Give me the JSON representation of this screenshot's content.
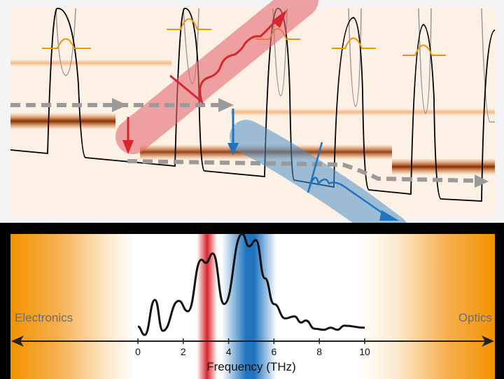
{
  "spectrum": {
    "side_left_label": "Electronics",
    "side_right_label": "Optics",
    "xlabel": "Frequency (THz)",
    "ticks": [
      "0",
      "2",
      "4",
      "6",
      "8",
      "10"
    ],
    "xlim": [
      0,
      10
    ],
    "red_band_thz": [
      2.6,
      3.5
    ],
    "blue_band_thz": [
      3.7,
      6.1
    ],
    "curve": [
      [
        0.0,
        0.1
      ],
      [
        0.3,
        0.02
      ],
      [
        0.75,
        0.36
      ],
      [
        1.1,
        0.06
      ],
      [
        1.8,
        0.35
      ],
      [
        2.2,
        0.25
      ],
      [
        2.8,
        0.75
      ],
      [
        3.0,
        0.72
      ],
      [
        3.3,
        0.81
      ],
      [
        3.8,
        0.32
      ],
      [
        4.6,
        1.0
      ],
      [
        4.9,
        0.88
      ],
      [
        5.2,
        0.94
      ],
      [
        5.6,
        0.57
      ],
      [
        6.0,
        0.32
      ],
      [
        6.5,
        0.18
      ],
      [
        6.9,
        0.2
      ],
      [
        7.2,
        0.14
      ],
      [
        7.4,
        0.16
      ],
      [
        7.8,
        0.08
      ],
      [
        8.2,
        0.07
      ],
      [
        8.5,
        0.09
      ],
      [
        8.8,
        0.07
      ],
      [
        9.1,
        0.11
      ],
      [
        10.0,
        0.09
      ]
    ]
  },
  "colors": {
    "orange": "#f39200",
    "red": "#d7262e",
    "blue": "#1f74bf",
    "peach": "#fdf1e6",
    "gray_dash": "#9a9a9a"
  }
}
